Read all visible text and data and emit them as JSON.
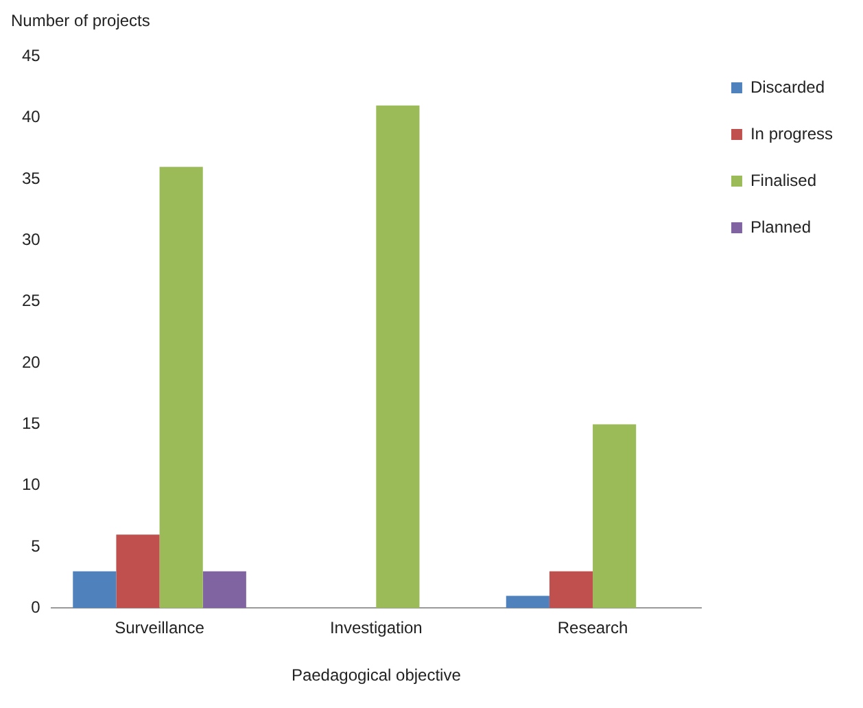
{
  "chart_data": {
    "type": "bar",
    "ylabel": "Number of projects",
    "xlabel": "Paedagogical objective",
    "categories": [
      "Surveillance",
      "Investigation",
      "Research"
    ],
    "series": [
      {
        "name": "Discarded",
        "color": "#4f81bd",
        "values": [
          3,
          0,
          1
        ]
      },
      {
        "name": "In progress",
        "color": "#c0504d",
        "values": [
          6,
          0,
          3
        ]
      },
      {
        "name": "Finalised",
        "color": "#9bbb59",
        "values": [
          36,
          41,
          15
        ]
      },
      {
        "name": "Planned",
        "color": "#8064a2",
        "values": [
          3,
          0,
          0
        ]
      }
    ],
    "ylim": [
      0,
      45
    ],
    "yticks": [
      0,
      5,
      10,
      15,
      20,
      25,
      30,
      35,
      40,
      45
    ],
    "grid": false,
    "legend": "top right"
  }
}
